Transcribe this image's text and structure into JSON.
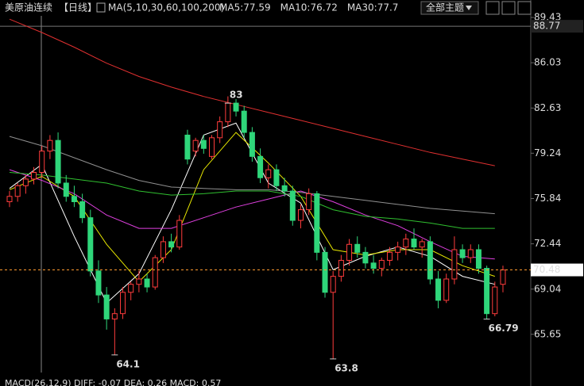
{
  "header": {
    "symbol": "美原油连续",
    "period": "【日线】",
    "ma_setting": "MA(5,10,30,60,100,200)",
    "theme_button": "全部主题"
  },
  "footer": {
    "macd": "MACD(26,12,9) DIFF: -0.07 DEA: 0.26 MACD: 0.57"
  },
  "chart_data": {
    "type": "candlestick",
    "ylim": [
      62.78,
      89.43
    ],
    "yticks": [
      89.43,
      86.03,
      82.63,
      79.24,
      75.84,
      72.44,
      69.04,
      65.65
    ],
    "ref_line": 88.77,
    "up_color": "#ff3c3c",
    "down_color": "#2fd67a",
    "candles": [
      [
        75.6,
        76.4,
        75.2,
        76.0
      ],
      [
        76.0,
        77.0,
        75.6,
        76.8
      ],
      [
        76.8,
        77.6,
        76.2,
        77.3
      ],
      [
        77.3,
        78.2,
        76.9,
        77.8
      ],
      [
        77.8,
        79.8,
        77.4,
        79.4
      ],
      [
        79.4,
        80.6,
        78.8,
        80.2
      ],
      [
        80.2,
        80.8,
        76.6,
        77.0
      ],
      [
        77.0,
        77.6,
        75.6,
        76.0
      ],
      [
        76.0,
        76.8,
        75.2,
        75.6
      ],
      [
        75.6,
        76.2,
        74.0,
        74.4
      ],
      [
        74.4,
        75.0,
        70.0,
        70.4
      ],
      [
        70.4,
        71.2,
        68.0,
        68.6
      ],
      [
        68.6,
        69.2,
        66.0,
        66.8
      ],
      [
        66.8,
        67.6,
        64.1,
        67.2
      ],
      [
        67.2,
        69.2,
        66.8,
        68.8
      ],
      [
        68.8,
        69.6,
        68.2,
        69.4
      ],
      [
        69.4,
        70.4,
        68.8,
        69.8
      ],
      [
        69.8,
        70.2,
        68.8,
        69.2
      ],
      [
        69.2,
        71.6,
        69.0,
        71.4
      ],
      [
        71.4,
        73.0,
        71.0,
        72.6
      ],
      [
        72.6,
        73.2,
        71.8,
        72.2
      ],
      [
        72.2,
        74.6,
        72.0,
        74.2
      ],
      [
        80.6,
        81.0,
        78.4,
        78.8
      ],
      [
        79.4,
        80.4,
        79.0,
        80.2
      ],
      [
        80.2,
        80.6,
        79.2,
        79.6
      ],
      [
        79.0,
        80.6,
        78.8,
        80.4
      ],
      [
        80.4,
        82.0,
        80.0,
        81.6
      ],
      [
        81.6,
        83.51,
        81.2,
        83.0
      ],
      [
        83.0,
        83.3,
        82.0,
        82.4
      ],
      [
        82.4,
        82.8,
        80.4,
        80.8
      ],
      [
        80.8,
        81.2,
        78.6,
        79.0
      ],
      [
        79.0,
        79.6,
        77.0,
        77.4
      ],
      [
        77.4,
        78.4,
        76.6,
        78.0
      ],
      [
        78.0,
        78.4,
        76.4,
        76.8
      ],
      [
        76.8,
        77.4,
        76.0,
        76.4
      ],
      [
        76.4,
        76.8,
        73.8,
        74.2
      ],
      [
        74.2,
        75.4,
        73.6,
        75.0
      ],
      [
        75.0,
        76.6,
        74.6,
        76.2
      ],
      [
        76.2,
        76.4,
        71.2,
        71.8
      ],
      [
        71.8,
        72.2,
        68.4,
        68.8
      ],
      [
        68.8,
        70.4,
        63.8,
        70.0
      ],
      [
        70.0,
        71.6,
        69.6,
        71.2
      ],
      [
        71.2,
        72.8,
        70.8,
        72.4
      ],
      [
        72.4,
        73.0,
        71.4,
        71.8
      ],
      [
        71.8,
        72.2,
        70.6,
        71.0
      ],
      [
        71.0,
        71.6,
        70.2,
        70.6
      ],
      [
        70.6,
        71.4,
        70.0,
        71.2
      ],
      [
        71.2,
        72.2,
        70.8,
        71.8
      ],
      [
        71.8,
        72.6,
        71.2,
        72.2
      ],
      [
        72.2,
        73.2,
        71.6,
        72.8
      ],
      [
        72.8,
        73.6,
        72.0,
        72.2
      ],
      [
        72.2,
        72.8,
        71.4,
        72.6
      ],
      [
        72.6,
        73.0,
        69.4,
        69.8
      ],
      [
        69.8,
        70.4,
        67.6,
        68.2
      ],
      [
        68.2,
        70.2,
        68.0,
        69.8
      ],
      [
        69.8,
        73.0,
        69.4,
        72.0
      ],
      [
        72.0,
        72.4,
        71.0,
        71.4
      ],
      [
        71.4,
        72.4,
        71.0,
        72.0
      ],
      [
        72.0,
        72.4,
        70.2,
        70.6
      ],
      [
        70.6,
        70.8,
        66.79,
        67.2
      ],
      [
        67.2,
        69.6,
        67.0,
        69.2
      ],
      [
        69.4,
        70.8,
        68.8,
        70.48
      ]
    ],
    "annotations": [
      {
        "candle": 27,
        "field": 3,
        "side": "high"
      },
      {
        "candle": 13,
        "field": 2,
        "side": "low"
      },
      {
        "candle": 40,
        "field": 2,
        "side": "low"
      },
      {
        "candle": 59,
        "field": 2,
        "side": "low"
      }
    ],
    "x": [
      0,
      4,
      8,
      12,
      16,
      20,
      24,
      28,
      32,
      36,
      40,
      44,
      48,
      52,
      56,
      60
    ],
    "series": [
      {
        "name": "MA5:77.59",
        "color": "#ffffff",
        "values": [
          76.6,
          78.4,
          73.0,
          68.0,
          70.2,
          75.0,
          80.6,
          81.5,
          77.0,
          75.5,
          70.5,
          71.5,
          72.2,
          71.5,
          70.0,
          69.4
        ]
      },
      {
        "name": "MA10:76.72",
        "color": "#e8e800",
        "values": [
          76.5,
          77.5,
          76.0,
          72.4,
          69.6,
          72.0,
          78.0,
          80.8,
          78.5,
          76.0,
          72.0,
          71.6,
          72.0,
          72.0,
          70.8,
          70.0
        ]
      },
      {
        "name": "MA30:77.7",
        "color": "#e040e0",
        "values": [
          78.0,
          77.2,
          76.2,
          74.6,
          73.6,
          73.6,
          74.4,
          75.2,
          75.8,
          76.4,
          75.6,
          74.6,
          73.8,
          72.6,
          71.5,
          71.3
        ]
      },
      {
        "color": "#30c030",
        "values": [
          77.8,
          77.6,
          77.3,
          77.0,
          76.4,
          76.1,
          76.2,
          76.4,
          76.4,
          76.0,
          75.0,
          74.5,
          74.3,
          74.0,
          73.6,
          73.6
        ]
      },
      {
        "color": "#909090",
        "values": [
          80.5,
          79.8,
          78.9,
          78.0,
          77.2,
          76.7,
          76.6,
          76.5,
          76.5,
          76.3,
          76.0,
          75.7,
          75.4,
          75.1,
          74.9,
          74.7
        ]
      },
      {
        "color": "#e03030",
        "values": [
          89.3,
          88.3,
          87.2,
          86.0,
          85.0,
          84.2,
          83.5,
          82.9,
          82.3,
          81.7,
          81.1,
          80.5,
          79.9,
          79.3,
          78.8,
          78.3
        ]
      }
    ]
  }
}
